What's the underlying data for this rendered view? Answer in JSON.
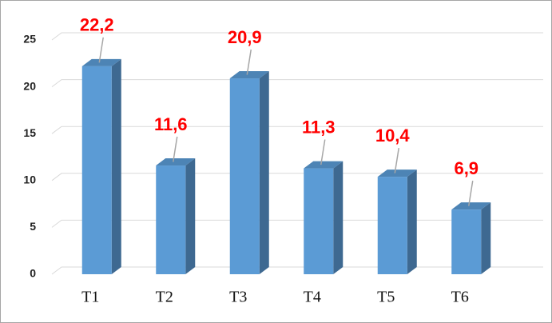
{
  "chart_data": {
    "type": "bar",
    "categories": [
      "T1",
      "T2",
      "T3",
      "T4",
      "T5",
      "T6"
    ],
    "values": [
      22.2,
      11.6,
      20.9,
      11.3,
      10.4,
      6.9
    ],
    "value_labels": [
      "22,2",
      "11,6",
      "20,9",
      "11,3",
      "10,4",
      "6,9"
    ],
    "color": "#5b9bd5",
    "ylim": [
      0,
      25
    ],
    "yticks": [
      0,
      5,
      10,
      15,
      20,
      25
    ],
    "grid": true
  }
}
